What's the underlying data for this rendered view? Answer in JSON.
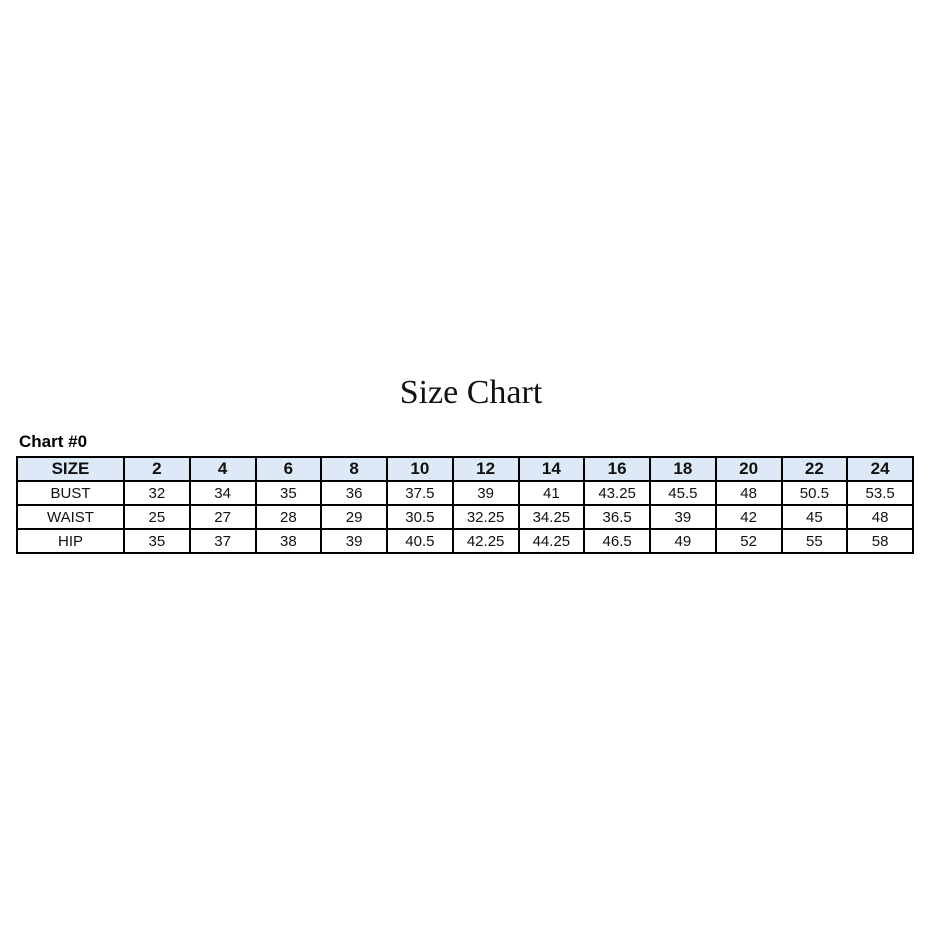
{
  "title": "Size Chart",
  "subtitle": "Chart #0",
  "table": {
    "header": [
      "SIZE",
      "2",
      "4",
      "6",
      "8",
      "10",
      "12",
      "14",
      "16",
      "18",
      "20",
      "22",
      "24"
    ],
    "rows": [
      [
        "BUST",
        "32",
        "34",
        "35",
        "36",
        "37.5",
        "39",
        "41",
        "43.25",
        "45.5",
        "48",
        "50.5",
        "53.5"
      ],
      [
        "WAIST",
        "25",
        "27",
        "28",
        "29",
        "30.5",
        "32.25",
        "34.25",
        "36.5",
        "39",
        "42",
        "45",
        "48"
      ],
      [
        "HIP",
        "35",
        "37",
        "38",
        "39",
        "40.5",
        "42.25",
        "44.25",
        "46.5",
        "49",
        "52",
        "55",
        "58"
      ]
    ]
  },
  "colors": {
    "header_fill": "#dde9f6",
    "border": "#000000"
  }
}
